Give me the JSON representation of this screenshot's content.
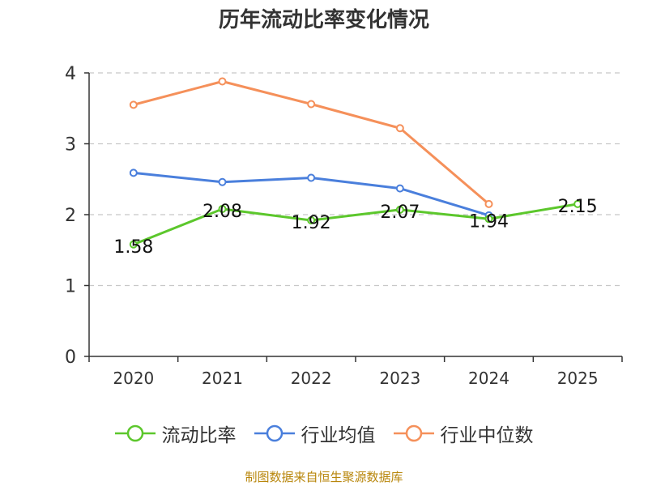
{
  "chart_data": {
    "type": "line",
    "title": "历年流动比率变化情况",
    "categories": [
      "2020",
      "2021",
      "2022",
      "2023",
      "2024",
      "2025"
    ],
    "ylim": [
      0,
      4
    ],
    "yticks": [
      0,
      1,
      2,
      3,
      4
    ],
    "grid": true,
    "series": [
      {
        "name": "流动比率",
        "color": "#5cc72c",
        "values": [
          1.58,
          2.08,
          1.92,
          2.07,
          1.94,
          2.15
        ],
        "labels": [
          "1.58",
          "2.08",
          "1.92",
          "2.07",
          "1.94",
          "2.15"
        ]
      },
      {
        "name": "行业均值",
        "color": "#4a7fdc",
        "values": [
          2.59,
          2.46,
          2.52,
          2.37,
          1.99,
          null
        ]
      },
      {
        "name": "行业中位数",
        "color": "#f5905a",
        "values": [
          3.55,
          3.88,
          3.56,
          3.22,
          2.15,
          null
        ]
      }
    ],
    "legend_position": "bottom"
  },
  "source": "制图数据来自恒生聚源数据库"
}
